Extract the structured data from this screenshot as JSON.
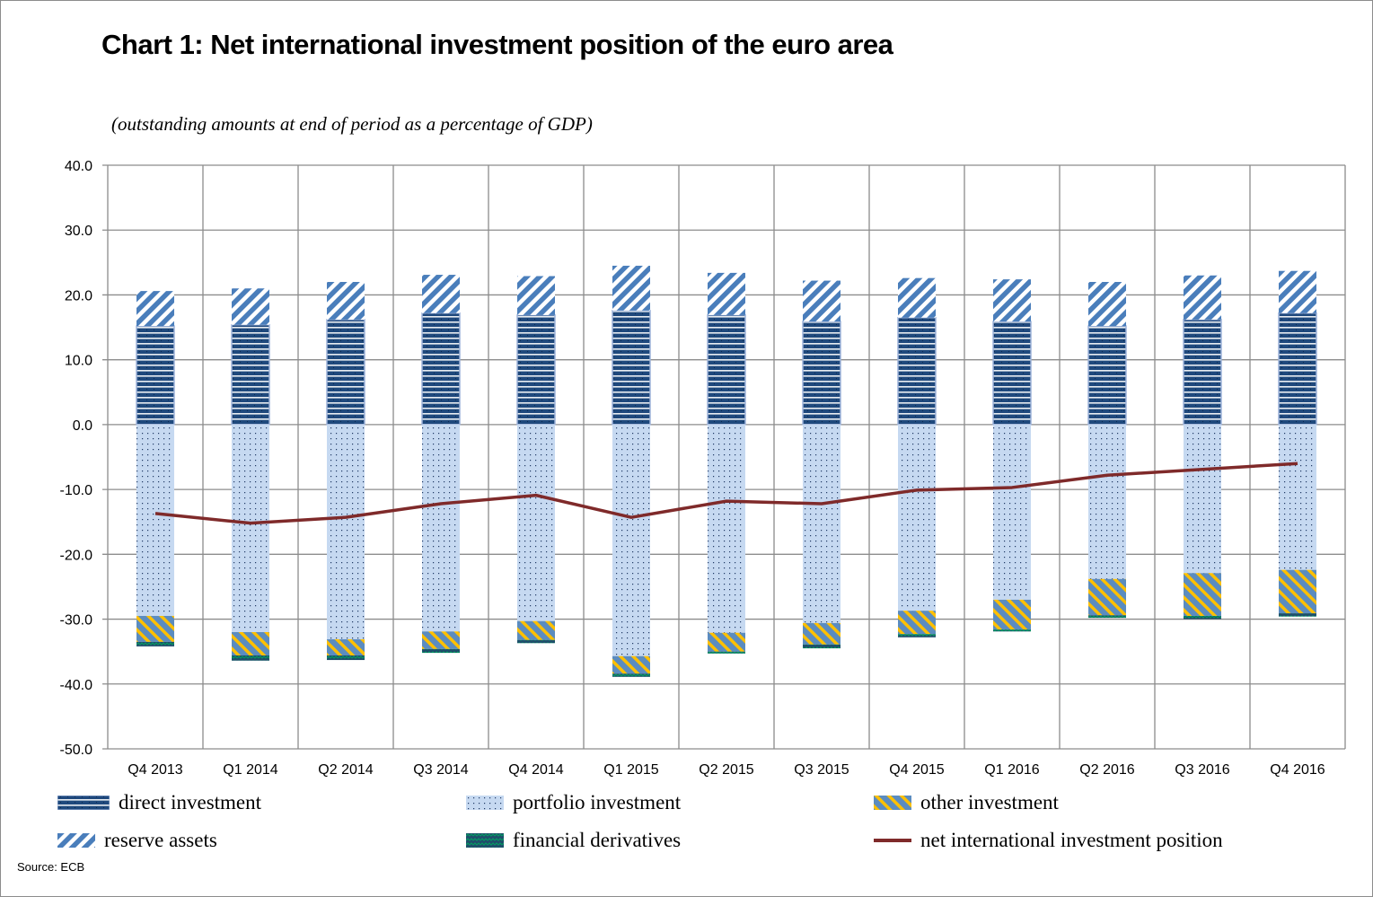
{
  "chart_data": {
    "type": "bar",
    "stacked": true,
    "title": "Chart 1: Net international investment position of the euro area",
    "subtitle": "(outstanding amounts at end of period as a percentage of GDP)",
    "xlabel": "",
    "ylabel": "",
    "ylim": [
      -50,
      40
    ],
    "yticks": [
      40,
      30,
      20,
      10,
      0,
      -10,
      -20,
      -30,
      -40,
      -50
    ],
    "ytick_labels": [
      "40.0",
      "30.0",
      "20.0",
      "10.0",
      "0.0",
      "-10.0",
      "-20.0",
      "-30.0",
      "-40.0",
      "-50.0"
    ],
    "grid": true,
    "legend_position": "bottom",
    "categories": [
      "Q4 2013",
      "Q1 2014",
      "Q2 2014",
      "Q3 2014",
      "Q4 2014",
      "Q1 2015",
      "Q2 2015",
      "Q3 2015",
      "Q4 2015",
      "Q1 2016",
      "Q2 2016",
      "Q3 2016",
      "Q4 2016"
    ],
    "series": [
      {
        "name": "direct investment",
        "type": "bar",
        "pattern": "horizontal-lines",
        "color": "#1f497d",
        "values": [
          15.2,
          15.4,
          16.2,
          17.2,
          16.9,
          17.6,
          16.9,
          15.9,
          16.5,
          15.9,
          15.2,
          16.2,
          17.2
        ]
      },
      {
        "name": "reserve assets",
        "type": "bar",
        "pattern": "diagonal-stripes",
        "color": "#4a7ebb",
        "values": [
          5.4,
          5.6,
          5.8,
          5.9,
          6.0,
          6.9,
          6.5,
          6.3,
          6.1,
          6.5,
          6.8,
          6.8,
          6.5
        ]
      },
      {
        "name": "portfolio investment",
        "type": "bar",
        "pattern": "dots",
        "color": "#c6d9f1",
        "values": [
          -29.5,
          -32.0,
          -33.1,
          -31.9,
          -30.3,
          -35.7,
          -32.1,
          -30.6,
          -28.7,
          -27.0,
          -23.8,
          -22.9,
          -22.4
        ]
      },
      {
        "name": "other investment",
        "type": "bar",
        "pattern": "yellow-blue-stripes",
        "color": "#ffc000",
        "values": [
          -4.0,
          -3.6,
          -2.5,
          -2.7,
          -2.9,
          -2.7,
          -2.9,
          -3.3,
          -3.6,
          -4.6,
          -5.6,
          -6.6,
          -6.7
        ]
      },
      {
        "name": "financial derivatives",
        "type": "bar",
        "pattern": "zigzag",
        "color": "#1a5c6b",
        "values": [
          -0.7,
          -0.8,
          -0.7,
          -0.6,
          -0.5,
          -0.5,
          -0.3,
          -0.6,
          -0.5,
          -0.3,
          -0.4,
          -0.5,
          -0.5
        ]
      },
      {
        "name": "net international investment position",
        "type": "line",
        "color": "#7f2a2a",
        "values": [
          -13.7,
          -15.2,
          -14.3,
          -12.2,
          -10.9,
          -14.3,
          -11.8,
          -12.2,
          -10.1,
          -9.7,
          -7.8,
          -6.9,
          -6.0
        ]
      }
    ],
    "legend": [
      "direct investment",
      "portfolio investment",
      "other investment",
      "reserve assets",
      "financial derivatives",
      "net international investment position"
    ],
    "source": "Source: ECB"
  }
}
